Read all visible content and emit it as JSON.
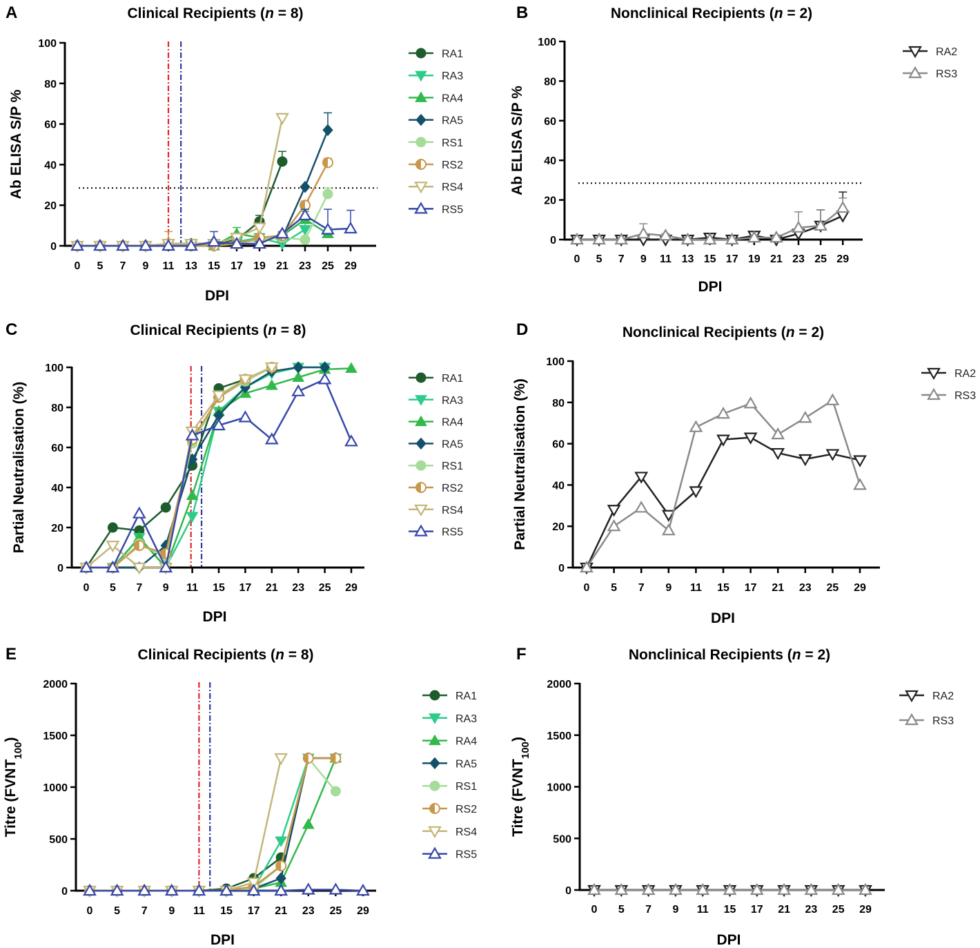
{
  "figure": {
    "style": {
      "series_colors": {
        "RA1": "#1e5c2e",
        "RA3": "#2ecc8a",
        "RA4": "#33b84c",
        "RA5": "#15506a",
        "RS1": "#a6dc9a",
        "RS2": "#c9974a",
        "RS4": "#c4b67a",
        "RS5": "#3748a8",
        "RA2": "#222222",
        "RS3": "#8a8a8a"
      },
      "threshold_color": "#000000",
      "vline_red": "#e0262a",
      "vline_blue": "#2e3c9a"
    }
  },
  "chart_data": [
    {
      "panel": "A",
      "type": "line",
      "title_prefix": "Clinical Recipients (",
      "title_n": "n",
      "title_suffix": " = 8)",
      "xlabel": "DPI",
      "ylabel": "Ab ELISA S/P %",
      "categories": [
        "0",
        "5",
        "7",
        "9",
        "11",
        "13",
        "15",
        "17",
        "19",
        "21",
        "23",
        "25",
        "29"
      ],
      "ylim": [
        0,
        100
      ],
      "yticks": [
        0,
        20,
        40,
        60,
        80,
        100
      ],
      "threshold": 28.5,
      "vlines": [
        {
          "x": 4.0,
          "color": "red"
        },
        {
          "x": 4.55,
          "color": "blue"
        }
      ],
      "series": [
        {
          "name": "RA1",
          "marker": "circle",
          "values": [
            0,
            0,
            0,
            0,
            0.5,
            1,
            1,
            3,
            12,
            41.5,
            null,
            null,
            null
          ],
          "errors": [
            0,
            0,
            0,
            1,
            1,
            1,
            1,
            1,
            3,
            5,
            0,
            0,
            0
          ]
        },
        {
          "name": "RA3",
          "marker": "tri-down",
          "values": [
            0,
            0,
            0,
            0,
            1,
            0,
            0,
            2,
            4,
            1,
            8,
            null,
            null
          ],
          "errors": [
            0,
            0,
            0,
            0,
            1,
            0,
            0,
            2,
            2,
            1,
            3,
            0,
            0
          ]
        },
        {
          "name": "RA4",
          "marker": "tri-up",
          "values": [
            0,
            0,
            0,
            0,
            0,
            0,
            0,
            6,
            4,
            5,
            13,
            6,
            null
          ],
          "errors": [
            0,
            0,
            0,
            0,
            0,
            0,
            0,
            3,
            2,
            2,
            4,
            3,
            0
          ]
        },
        {
          "name": "RA5",
          "marker": "diamond",
          "values": [
            0,
            0,
            0,
            0,
            1,
            1,
            1,
            1,
            3,
            4,
            29,
            57,
            null
          ],
          "errors": [
            0,
            0,
            0,
            0,
            1,
            1,
            1,
            1,
            1,
            1,
            0,
            8.5,
            0
          ]
        },
        {
          "name": "RS1",
          "marker": "circle",
          "values": [
            0,
            0,
            0,
            0,
            1,
            0,
            0,
            1,
            3,
            4,
            3,
            25.5,
            null
          ],
          "errors": [
            0,
            0,
            0,
            0,
            1,
            0,
            0,
            1,
            1,
            1,
            1,
            3,
            0
          ]
        },
        {
          "name": "RS2",
          "marker": "half-circle",
          "values": [
            0,
            0,
            0,
            0,
            1,
            0,
            0,
            1,
            4,
            5,
            20,
            41,
            null
          ],
          "errors": [
            0,
            0,
            0,
            0,
            6,
            0,
            0,
            1,
            1,
            2,
            2,
            2,
            0
          ]
        },
        {
          "name": "RS4",
          "marker": "open-tri-down",
          "values": [
            0,
            0,
            0,
            0,
            1,
            1,
            1,
            4,
            9,
            63,
            null,
            null,
            null
          ],
          "errors": [
            0,
            0,
            0,
            0,
            1,
            1,
            1,
            1,
            2,
            1,
            0,
            0,
            0
          ]
        },
        {
          "name": "RS5",
          "marker": "open-tri-up",
          "values": [
            0,
            0,
            0,
            0,
            0,
            0,
            2,
            1,
            1,
            6,
            15,
            8,
            8.5
          ],
          "errors": [
            0,
            0,
            0,
            0,
            0,
            0,
            5,
            1,
            1,
            1,
            3,
            10,
            9
          ]
        }
      ]
    },
    {
      "panel": "B",
      "type": "line",
      "title_prefix": "Nonclinical Recipients (",
      "title_n": "n",
      "title_suffix": " = 2)",
      "xlabel": "DPI",
      "ylabel": "Ab ELISA S/P %",
      "categories": [
        "0",
        "5",
        "7",
        "9",
        "11",
        "13",
        "15",
        "17",
        "19",
        "21",
        "23",
        "25",
        "29"
      ],
      "ylim": [
        0,
        100
      ],
      "yticks": [
        0,
        20,
        40,
        60,
        80,
        100
      ],
      "threshold": 28.5,
      "vlines": [],
      "series": [
        {
          "name": "RA2",
          "marker": "open-tri-down",
          "values": [
            0,
            0,
            0,
            0,
            0,
            0,
            1,
            0,
            2,
            0,
            3,
            7,
            12
          ],
          "errors": [
            0,
            0,
            0,
            1,
            1,
            0,
            1,
            0,
            1,
            1,
            2,
            8,
            12
          ]
        },
        {
          "name": "RS3",
          "marker": "open-tri-up",
          "values": [
            0,
            0,
            0,
            3,
            2,
            0,
            0,
            0,
            1,
            1,
            6,
            7,
            16
          ],
          "errors": [
            0,
            0,
            0,
            5,
            1,
            0,
            0,
            0,
            1,
            1,
            8,
            8,
            5
          ]
        }
      ]
    },
    {
      "panel": "C",
      "type": "line",
      "title_prefix": "Clinical Recipients (",
      "title_n": "n",
      "title_suffix": " = 8)",
      "xlabel": "DPI",
      "ylabel": "Partial Neutralisation (%)",
      "categories": [
        "0",
        "5",
        "7",
        "9",
        "11",
        "15",
        "17",
        "21",
        "23",
        "25",
        "29"
      ],
      "ylim": [
        0,
        100
      ],
      "yticks": [
        0,
        20,
        40,
        60,
        80,
        100
      ],
      "vlines": [
        {
          "x": 3.95,
          "color": "red"
        },
        {
          "x": 4.35,
          "color": "blue"
        }
      ],
      "series": [
        {
          "name": "RA1",
          "marker": "circle",
          "values": [
            0,
            20,
            18.5,
            30,
            51,
            89.5,
            94,
            100,
            null,
            null,
            null
          ]
        },
        {
          "name": "RA3",
          "marker": "tri-down",
          "values": [
            0,
            0,
            15,
            0,
            25.5,
            78,
            90,
            97,
            100,
            100,
            null
          ]
        },
        {
          "name": "RA4",
          "marker": "tri-up",
          "values": [
            0,
            0,
            15,
            0,
            36,
            78,
            87,
            91,
            95,
            99,
            99.5
          ]
        },
        {
          "name": "RA5",
          "marker": "diamond",
          "values": [
            0,
            0,
            0,
            11,
            54,
            76,
            90,
            98,
            100,
            100,
            null
          ]
        },
        {
          "name": "RS1",
          "marker": "circle",
          "values": [
            0,
            0,
            12,
            5,
            62,
            85,
            93,
            100,
            null,
            null,
            null
          ]
        },
        {
          "name": "RS2",
          "marker": "half-circle",
          "values": [
            0,
            0,
            11,
            7,
            64,
            85,
            94,
            100,
            null,
            null,
            null
          ]
        },
        {
          "name": "RS4",
          "marker": "open-tri-down",
          "values": [
            0,
            11,
            0,
            0,
            68,
            86,
            94,
            100,
            null,
            null,
            null
          ]
        },
        {
          "name": "RS5",
          "marker": "open-tri-up",
          "values": [
            0,
            0,
            27,
            0,
            66,
            71,
            75,
            64,
            88,
            94,
            63
          ]
        }
      ]
    },
    {
      "panel": "D",
      "type": "line",
      "title_prefix": "Nonclinical Recipients (",
      "title_n": "n",
      "title_suffix": " = 2)",
      "xlabel": "DPI",
      "ylabel": "Partial Neutralisation (%)",
      "categories": [
        "0",
        "5",
        "7",
        "9",
        "11",
        "15",
        "17",
        "21",
        "23",
        "25",
        "29"
      ],
      "ylim": [
        0,
        100
      ],
      "yticks": [
        0,
        20,
        40,
        60,
        80,
        100
      ],
      "vlines": [],
      "series": [
        {
          "name": "RA2",
          "marker": "open-tri-down",
          "values": [
            0,
            28,
            44,
            25.5,
            37,
            62,
            63,
            55.5,
            52.5,
            55,
            52
          ]
        },
        {
          "name": "RS3",
          "marker": "open-tri-up",
          "values": [
            0,
            20,
            29,
            18,
            68,
            74.5,
            79.5,
            64.5,
            72.5,
            81,
            40
          ]
        }
      ]
    },
    {
      "panel": "E",
      "type": "line",
      "title_prefix": "Clinical Recipients (",
      "title_n": "n",
      "title_suffix": " = 8)",
      "xlabel": "DPI",
      "ylabel_main": "Titre (FVNT",
      "ylabel_sub": "100",
      "ylabel_end": ")",
      "categories": [
        "0",
        "5",
        "7",
        "9",
        "11",
        "15",
        "17",
        "21",
        "23",
        "25",
        "29"
      ],
      "ylim": [
        0,
        2000
      ],
      "yticks": [
        0,
        500,
        1000,
        1500,
        2000
      ],
      "vlines": [
        {
          "x": 4.0,
          "color": "red"
        },
        {
          "x": 4.4,
          "color": "blue"
        }
      ],
      "series": [
        {
          "name": "RA1",
          "marker": "circle",
          "values": [
            0,
            0,
            0,
            0,
            0,
            20,
            120,
            320,
            null,
            null,
            null
          ]
        },
        {
          "name": "RA3",
          "marker": "tri-down",
          "values": [
            0,
            0,
            0,
            0,
            0,
            0,
            20,
            480,
            1280,
            1280,
            null
          ]
        },
        {
          "name": "RA4",
          "marker": "tri-up",
          "values": [
            0,
            0,
            0,
            0,
            0,
            0,
            20,
            80,
            640,
            1280,
            null
          ]
        },
        {
          "name": "RA5",
          "marker": "diamond",
          "values": [
            0,
            0,
            0,
            0,
            0,
            0,
            20,
            120,
            1280,
            1280,
            null
          ]
        },
        {
          "name": "RS1",
          "marker": "circle",
          "values": [
            0,
            0,
            0,
            0,
            0,
            0,
            20,
            240,
            1280,
            960,
            null
          ]
        },
        {
          "name": "RS2",
          "marker": "half-circle",
          "values": [
            0,
            0,
            0,
            0,
            0,
            0,
            40,
            240,
            1280,
            1280,
            null
          ]
        },
        {
          "name": "RS4",
          "marker": "open-tri-down",
          "values": [
            0,
            0,
            0,
            0,
            0,
            0,
            80,
            1280,
            null,
            null,
            null
          ]
        },
        {
          "name": "RS5",
          "marker": "open-tri-up",
          "values": [
            0,
            0,
            0,
            0,
            0,
            0,
            0,
            0,
            10,
            10,
            0
          ]
        }
      ]
    },
    {
      "panel": "F",
      "type": "line",
      "title_prefix": "Nonclinical Recipients (",
      "title_n": "n",
      "title_suffix": " = 2)",
      "xlabel": "DPI",
      "ylabel_main": "Titre (FVNT",
      "ylabel_sub": "100",
      "ylabel_end": ")",
      "categories": [
        "0",
        "5",
        "7",
        "9",
        "11",
        "15",
        "17",
        "21",
        "23",
        "25",
        "29"
      ],
      "ylim": [
        0,
        2000
      ],
      "yticks": [
        0,
        500,
        1000,
        1500,
        2000
      ],
      "vlines": [],
      "series": [
        {
          "name": "RA2",
          "marker": "open-tri-down",
          "values": [
            0,
            0,
            0,
            0,
            0,
            0,
            0,
            0,
            0,
            0,
            0
          ]
        },
        {
          "name": "RS3",
          "marker": "open-tri-up",
          "values": [
            0,
            0,
            0,
            0,
            0,
            0,
            0,
            0,
            0,
            0,
            0
          ]
        }
      ]
    }
  ]
}
